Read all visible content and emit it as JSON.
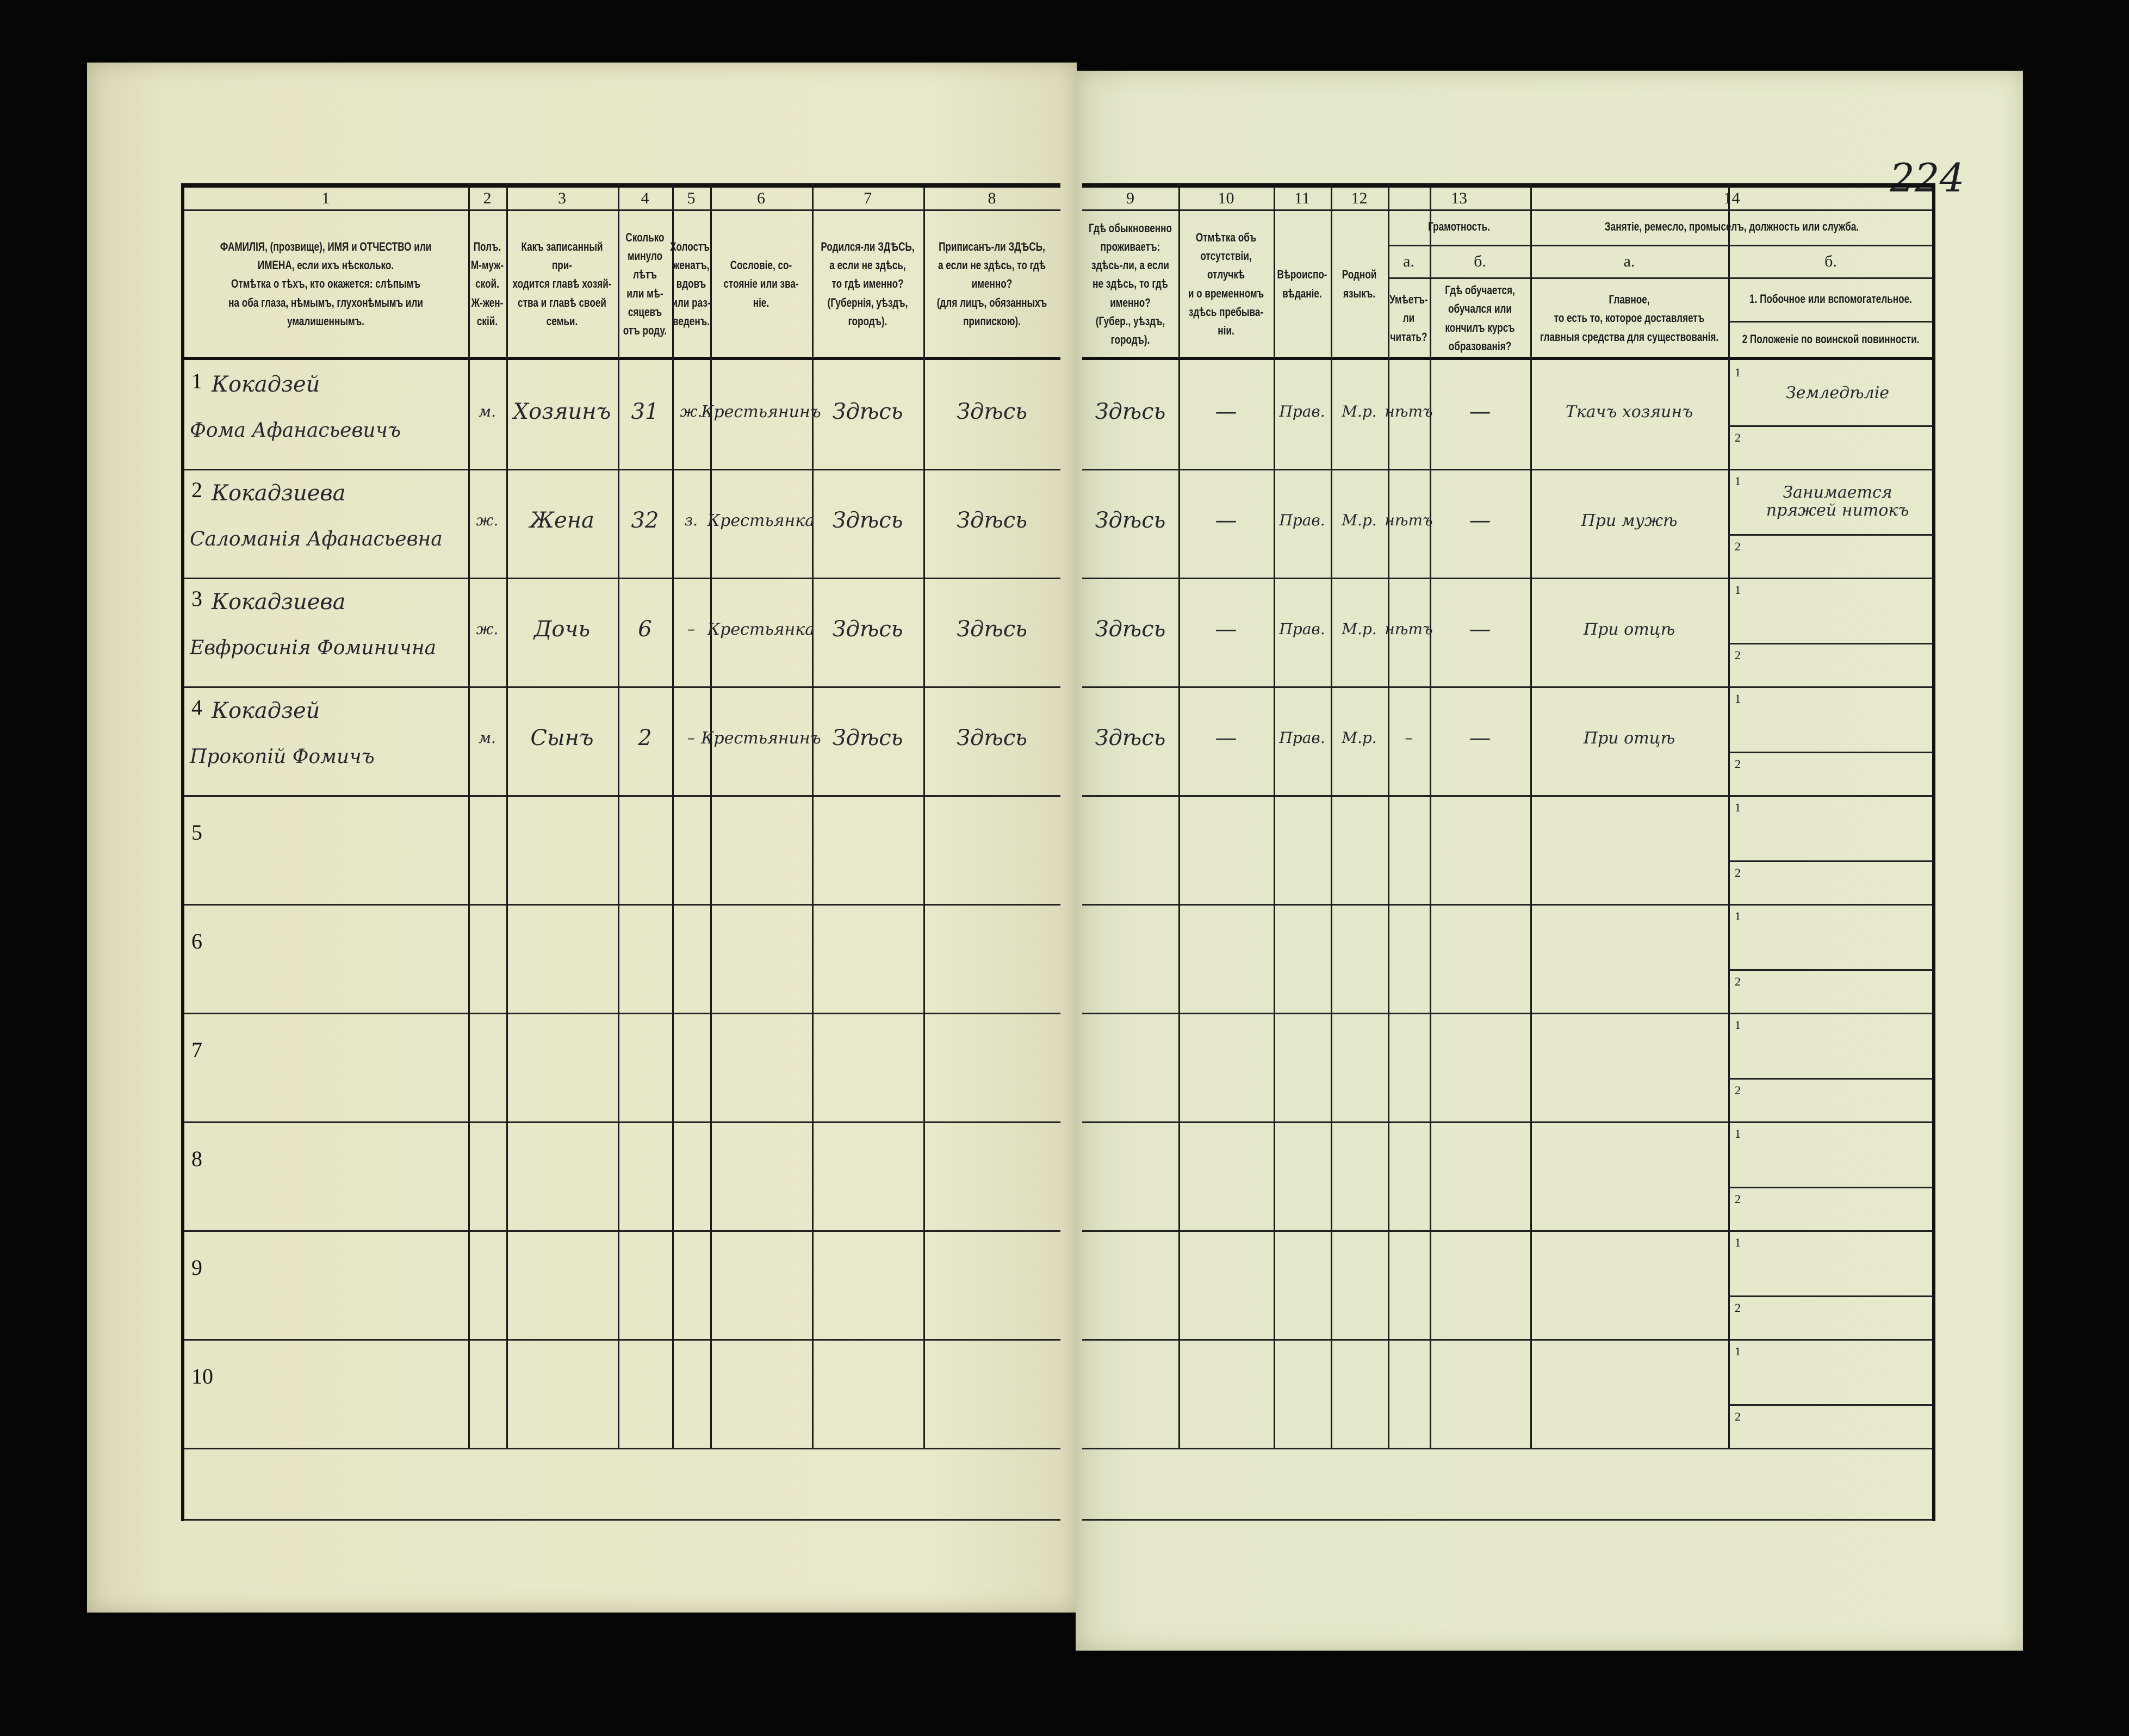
{
  "sheet_number": "224",
  "colors": {
    "paper": "#e6e9cc",
    "ink": "#1c1c1c",
    "handwriting": "#26262e",
    "background": "#050505"
  },
  "columns": {
    "c1": {
      "num": "1",
      "header": "ФАМИЛIЯ, (прозвище), ИМЯ и ОТЧЕСТВО или\nИМЕНА, если ихъ нѣсколько.\nОтмѣтка о тѣхъ, кто окажется: слѣпымъ\nна оба глаза, нѣмымъ, глухонѣмымъ или\nумалишеннымъ."
    },
    "c2": {
      "num": "2",
      "header": "Полъ.\nМ-муж-\nской.\nЖ-жен-\nскiй."
    },
    "c3": {
      "num": "3",
      "header": "Какъ записанный при-\nходится главѣ хозяй-\nства и главѣ своей\nсемьи."
    },
    "c4": {
      "num": "4",
      "header": "Сколько\nминуло\nлѣтъ\nили мѣ-\nсяцевъ\nотъ роду."
    },
    "c5": {
      "num": "5",
      "header": "Холостъ,\nженатъ,\nвдовъ\nили раз-\nведенъ."
    },
    "c6": {
      "num": "6",
      "header": "Сословiе, со-\nстоянiе или зва-\nнiе."
    },
    "c7": {
      "num": "7",
      "header": "Родился-ли ЗДѢСЬ,\nа если не здѣсь,\nто гдѣ именно?\n(Губернiя, уѣздъ, городъ)."
    },
    "c8": {
      "num": "8",
      "header": "Приписанъ-ли ЗДѢСЬ,\nа если не здѣсь, то гдѣ\nименно?\n(для лицъ, обязанныхъ\nприпискою)."
    },
    "c9": {
      "num": "9",
      "header": "Гдѣ обыкновенно\nпроживаетъ:\nздѣсь-ли, а если\nне здѣсь, то гдѣ\nименно?\n(Губер., уѣздъ, городъ)."
    },
    "c10": {
      "num": "10",
      "header": "Отмѣтка объ\nотсутствiи, отлучкѣ\nи о временномъ\nздѣсь пребыва-\nнiи."
    },
    "c11": {
      "num": "11",
      "header": "Вѣроиспо-\nвѣданiе."
    },
    "c12": {
      "num": "12",
      "header": "Родной\nязыкъ."
    },
    "c13": {
      "num": "13",
      "group": "Грамотность.",
      "a_letter": "а.",
      "a_header": "Умѣетъ-\nли\nчитать?",
      "b_letter": "б.",
      "b_header": "Гдѣ обучается,\nобучался или\nкончилъ курсъ\nобразованiя?"
    },
    "c14": {
      "num": "14",
      "group": "Занятiе, ремесло, промыселъ, должность или служба.",
      "a_letter": "а.",
      "a_header": "Главное,\nто есть то, которое доставляетъ\nглавныя средства для существованiя.",
      "b_letter": "б.",
      "b_header_1": "1. Побочное или вспомогательное.",
      "b_header_2": "2 Положенiе по воинской повинности."
    }
  },
  "rows": [
    {
      "num": "1",
      "surname": "Кокадзей",
      "name": "Фома Афанасьевичъ",
      "sex": "м.",
      "relation": "Хозяинъ",
      "age": "31",
      "marital": "ж.",
      "estate": "Крестьянинъ",
      "born": "Здѣсь",
      "registered": "Здѣсь",
      "residence": "Здѣсь",
      "absence": "—",
      "religion": "Прав.",
      "language": "М.р.",
      "literacy_a": "нѣтъ",
      "literacy_b": "—",
      "occupation_main": "Ткачъ хозяинъ",
      "side_1": "Земледѣлiе",
      "side_2": ""
    },
    {
      "num": "2",
      "surname": "Кокадзиева",
      "name": "Саломанiя Афанасьевна",
      "sex": "ж.",
      "relation": "Жена",
      "age": "32",
      "marital": "з.",
      "estate": "Крестьянка",
      "born": "Здѣсь",
      "registered": "Здѣсь",
      "residence": "Здѣсь",
      "absence": "—",
      "religion": "Прав.",
      "language": "М.р.",
      "literacy_a": "нѣтъ",
      "literacy_b": "—",
      "occupation_main": "При мужѣ",
      "side_1": "Занимается пряжей нитокъ",
      "side_2": ""
    },
    {
      "num": "3",
      "surname": "Кокадзиева",
      "name": "Евфросинiя Фоминична",
      "sex": "ж.",
      "relation": "Дочь",
      "age": "6",
      "marital": "–",
      "estate": "Крестьянка",
      "born": "Здѣсь",
      "registered": "Здѣсь",
      "residence": "Здѣсь",
      "absence": "—",
      "religion": "Прав.",
      "language": "М.р.",
      "literacy_a": "нѣтъ",
      "literacy_b": "—",
      "occupation_main": "При отцѣ",
      "side_1": "",
      "side_2": ""
    },
    {
      "num": "4",
      "surname": "Кокадзей",
      "name": "Прокопiй Фомичъ",
      "sex": "м.",
      "relation": "Сынъ",
      "age": "2",
      "marital": "–",
      "estate": "Крестьянинъ",
      "born": "Здѣсь",
      "registered": "Здѣсь",
      "residence": "Здѣсь",
      "absence": "—",
      "religion": "Прав.",
      "language": "М.р.",
      "literacy_a": "–",
      "literacy_b": "—",
      "occupation_main": "При отцѣ",
      "side_1": "",
      "side_2": ""
    },
    {
      "num": "5"
    },
    {
      "num": "6"
    },
    {
      "num": "7"
    },
    {
      "num": "8"
    },
    {
      "num": "9"
    },
    {
      "num": "10"
    }
  ],
  "sub_labels": {
    "one": "1",
    "two": "2"
  }
}
